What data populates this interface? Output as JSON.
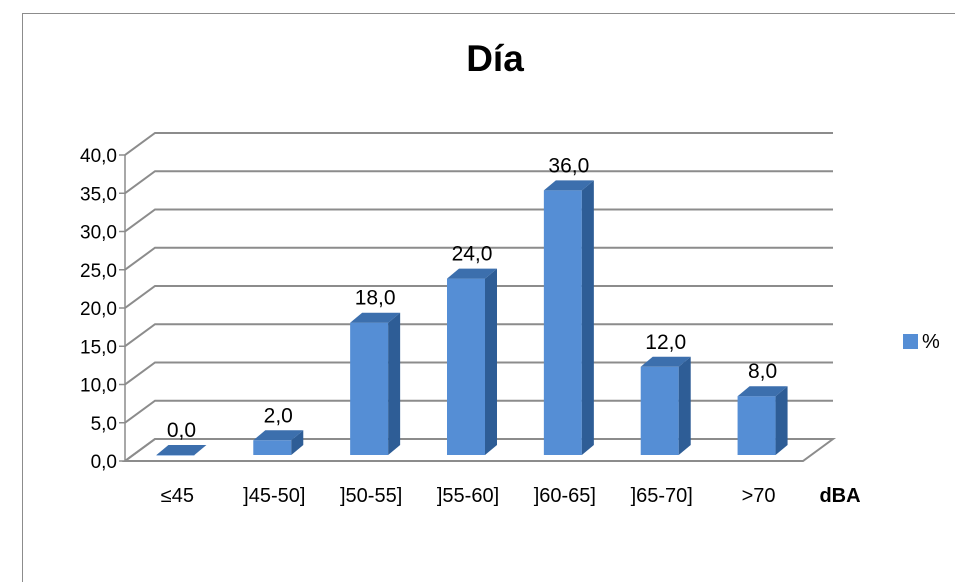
{
  "chart_data": {
    "type": "bar",
    "title": "Día",
    "xlabel": "dBA",
    "ylabel": "",
    "categories": [
      "≤45",
      "]45-50]",
      "]50-55]",
      "]55-60]",
      "]60-65]",
      "]65-70]",
      ">70"
    ],
    "series": [
      {
        "name": "%",
        "values": [
          0.0,
          2.0,
          18.0,
          24.0,
          36.0,
          12.0,
          8.0
        ]
      }
    ],
    "data_labels": [
      "0,0",
      "2,0",
      "18,0",
      "24,0",
      "36,0",
      "12,0",
      "8,0"
    ],
    "ylim": [
      0,
      40
    ],
    "yticks": [
      "0,0",
      "5,0",
      "10,0",
      "15,0",
      "20,0",
      "25,0",
      "30,0",
      "35,0",
      "40,0"
    ],
    "grid": true,
    "legend_position": "right",
    "three_d": true,
    "colors": {
      "bar_front": "#558ed5",
      "bar_side": "#2e5d96",
      "bar_top": "#3c6fad",
      "grid": "#8c8c8c"
    }
  }
}
